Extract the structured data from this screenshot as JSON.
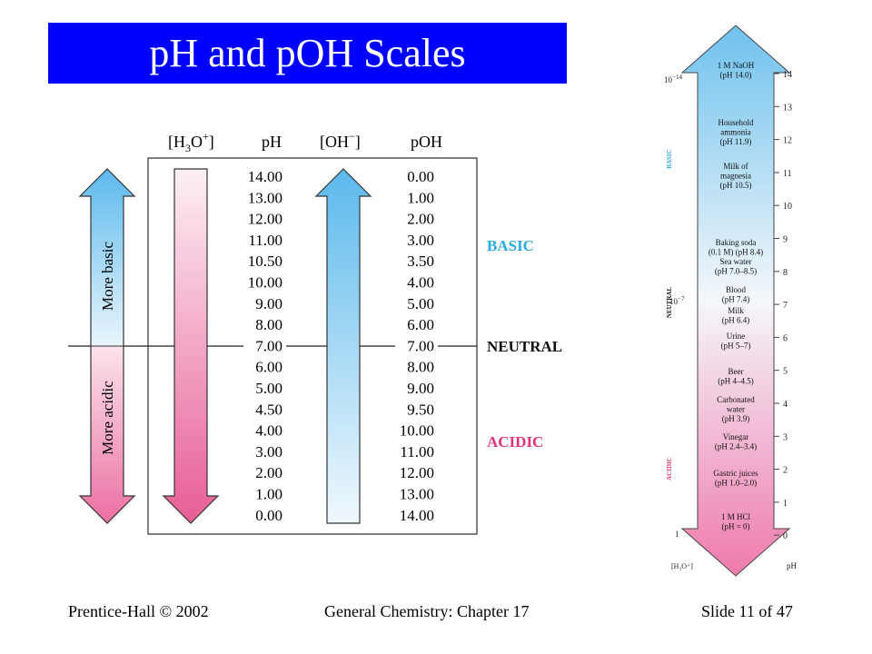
{
  "slide": {
    "title": "pH and pOH Scales",
    "footer_left": "Prentice-Hall © 2002",
    "footer_center": "General Chemistry: Chapter 17",
    "footer_right": "Slide 11 of 47"
  },
  "table": {
    "headers": {
      "h3o_main": "[H",
      "h3o_sub": "3",
      "h3o_tail": "O",
      "h3o_sup": "+",
      "h3o_close": "]",
      "ph": "pH",
      "oh": "[OH",
      "oh_sup": "−",
      "oh_close": "]",
      "poh": "pOH"
    },
    "ph_values": [
      "14.00",
      "13.00",
      "12.00",
      "11.00",
      "10.50",
      "10.00",
      "9.00",
      "8.00",
      "7.00",
      "6.00",
      "5.00",
      "4.50",
      "4.00",
      "3.00",
      "2.00",
      "1.00",
      "0.00"
    ],
    "poh_values": [
      "0.00",
      "1.00",
      "2.00",
      "3.00",
      "3.50",
      "4.00",
      "5.00",
      "6.00",
      "7.00",
      "8.00",
      "9.00",
      "9.50",
      "10.00",
      "11.00",
      "12.00",
      "13.00",
      "14.00"
    ],
    "more_basic": "More basic",
    "more_acidic": "More acidic",
    "label_basic": "BASIC",
    "label_neutral": "NEUTRAL",
    "label_acidic": "ACIDIC"
  },
  "scale": {
    "top_conc": "10",
    "top_conc_exp": "−14",
    "mid_conc": "10",
    "mid_conc_exp": "−7",
    "bottom_conc": "1",
    "axis_left": "[H₃O⁺]",
    "axis_right": "pH",
    "side_basic": "BASIC",
    "side_neutral": "NEUTRAL",
    "side_acidic": "ACIDIC",
    "ticks": [
      "14",
      "13",
      "12",
      "11",
      "10",
      "9",
      "8",
      "7",
      "6",
      "5",
      "4",
      "3",
      "2",
      "1",
      "0"
    ],
    "items": [
      [
        "1 M NaOH",
        "(pH 14.0)"
      ],
      [
        "Household",
        "ammonia",
        "(pH 11.9)"
      ],
      [
        "Milk of",
        "magnesia",
        "(pH 10.5)"
      ],
      [
        "Baking soda",
        "(0.1 M) (pH 8.4)",
        "Sea water",
        "(pH 7.0–8.5)"
      ],
      [
        "Blood",
        "(pH 7.4)"
      ],
      [
        "Milk",
        "(pH 6.4)"
      ],
      [
        "Urine",
        "(pH 5–7)"
      ],
      [
        "Beer",
        "(pH 4–4.5)"
      ],
      [
        "Carbonated",
        "water",
        "(pH 3.9)"
      ],
      [
        "Vinegar",
        "(pH 2.4–3.4)"
      ],
      [
        "Gastric juices",
        "(pH 1.0–2.0)"
      ],
      [
        "1 M HCl",
        "(pH = 0)"
      ]
    ]
  },
  "colors": {
    "title_bg": "#0000ff",
    "basic": "#29abe2",
    "acidic": "#e6337a",
    "blue_arrow": "#7ec8ef",
    "pink_arrow": "#ea6ea0"
  }
}
